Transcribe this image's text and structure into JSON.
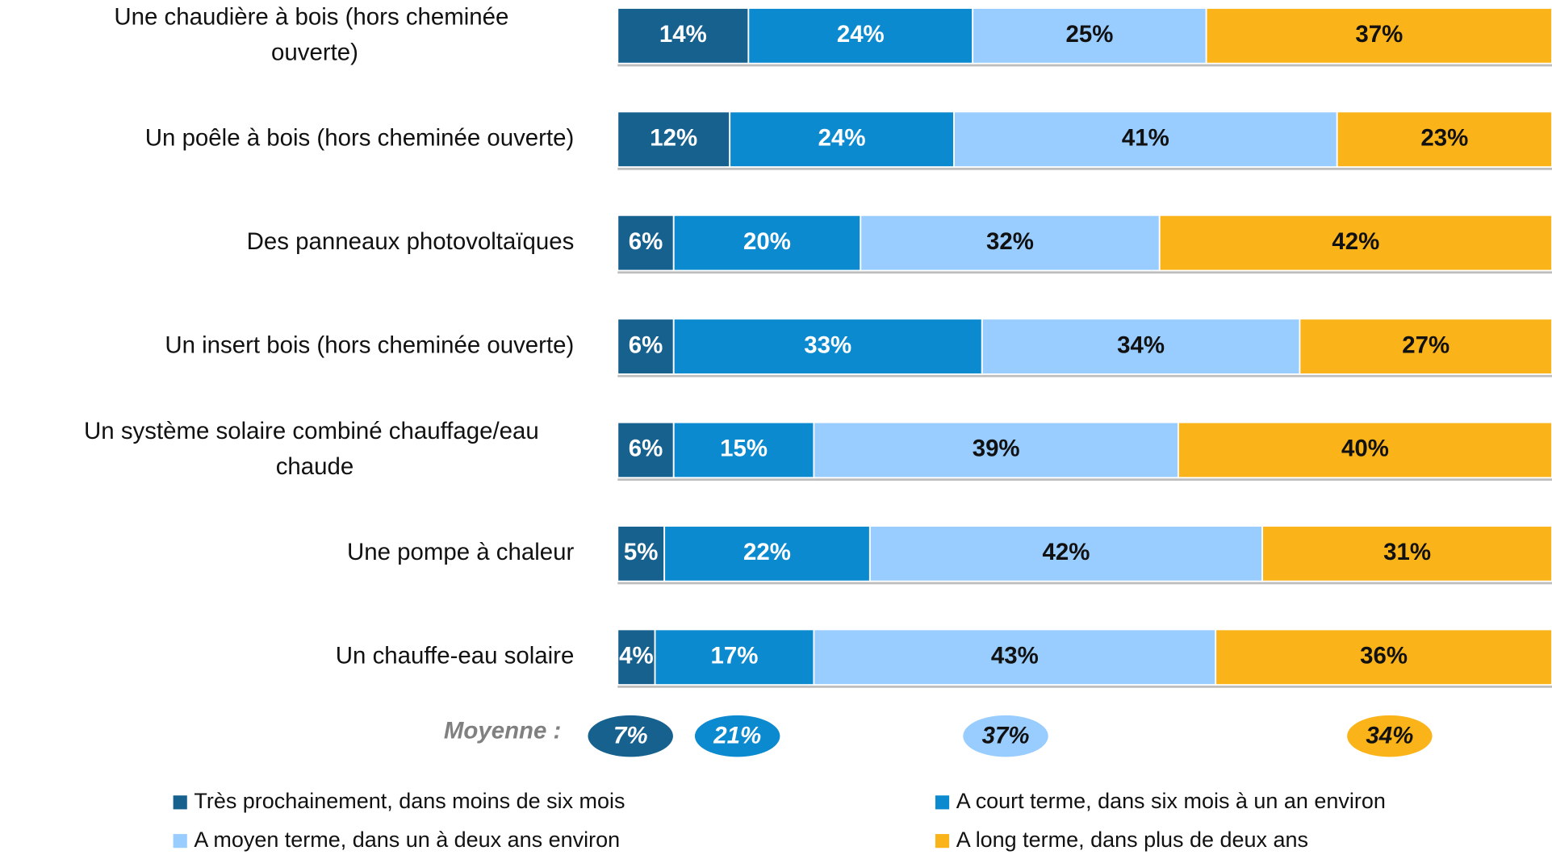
{
  "chart_data": {
    "type": "stacked-bar-horizontal",
    "categories": [
      "Une chaudière à bois (hors cheminée ouverte)",
      "Un poêle à bois (hors cheminée ouverte)",
      "Des panneaux photovoltaïques",
      "Un insert bois (hors cheminée ouverte)",
      "Un système solaire combiné chauffage/eau chaude",
      "Une pompe à chaleur",
      "Un chauffe-eau solaire"
    ],
    "xlim": [
      0,
      100
    ],
    "average_title": "Moyenne :",
    "series": [
      {
        "name": "Très prochainement, dans moins de six mois",
        "color": "#17618f",
        "values": [
          14,
          12,
          6,
          6,
          6,
          5,
          4
        ],
        "value_labels": [
          "14%",
          "12%",
          "6%",
          "6%",
          "6%",
          "5%",
          "4%"
        ],
        "average": 7,
        "average_label": "7%"
      },
      {
        "name": "A court terme, dans six mois à un an environ",
        "color": "#0b8ad0",
        "values": [
          24,
          24,
          20,
          33,
          15,
          22,
          17
        ],
        "value_labels": [
          "24%",
          "24%",
          "20%",
          "33%",
          "15%",
          "22%",
          "17%"
        ],
        "average": 21,
        "average_label": "21%"
      },
      {
        "name": "A moyen terme, dans un à deux ans environ",
        "color": "#99ccff",
        "values": [
          25,
          41,
          32,
          34,
          39,
          42,
          43
        ],
        "value_labels": [
          "25%",
          "41%",
          "32%",
          "34%",
          "39%",
          "42%",
          "43%"
        ],
        "average": 37,
        "average_label": "37%"
      },
      {
        "name": "A long terme, dans plus de deux ans",
        "color": "#fab319",
        "values": [
          37,
          23,
          42,
          27,
          40,
          31,
          36
        ],
        "value_labels": [
          "37%",
          "23%",
          "42%",
          "27%",
          "40%",
          "31%",
          "36%"
        ],
        "average": 34,
        "average_label": "34%"
      }
    ]
  }
}
